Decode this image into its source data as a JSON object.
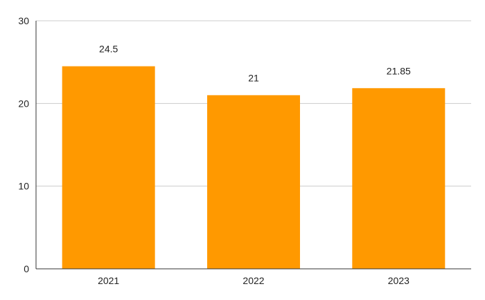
{
  "chart_data": {
    "type": "bar",
    "categories": [
      "2021",
      "2022",
      "2023"
    ],
    "values": [
      24.5,
      21,
      21.85
    ],
    "data_labels": [
      "24.5",
      "21",
      "21.85"
    ],
    "ylim": [
      0,
      30
    ],
    "yticks": [
      "0",
      "10",
      "20",
      "30"
    ],
    "grid": true,
    "bar_color": "#ff9900",
    "grid_color": "#cccccc",
    "axis_color": "#333333"
  }
}
